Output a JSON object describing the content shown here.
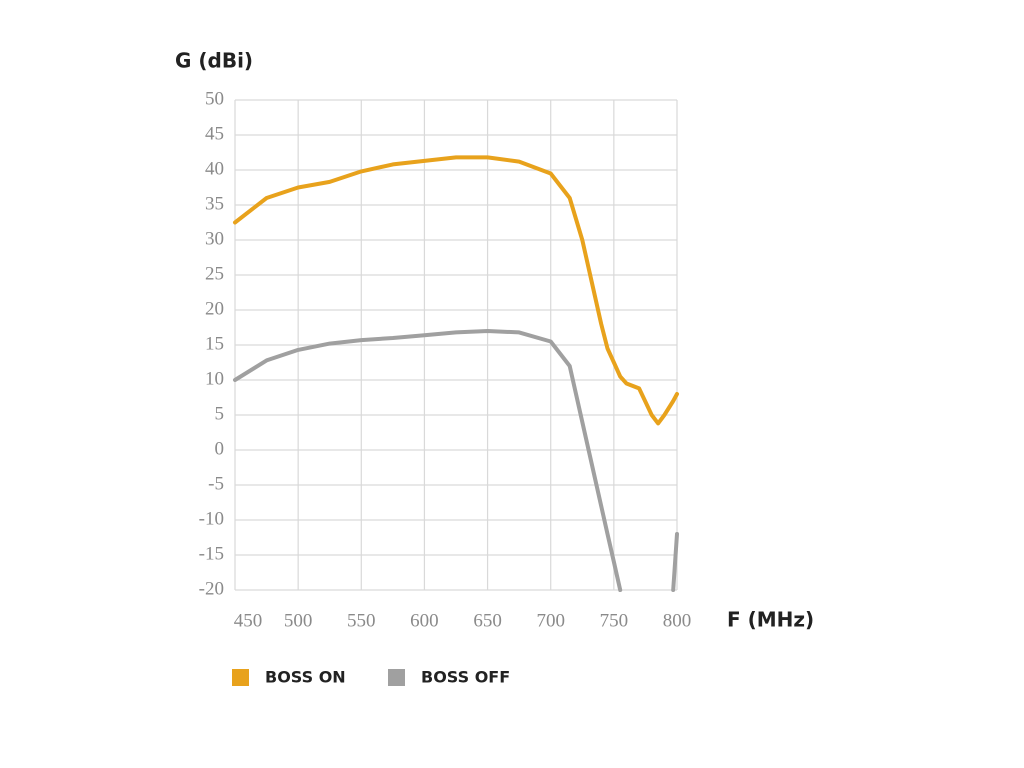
{
  "chart_data": {
    "type": "line",
    "y_label": "G (dBi)",
    "x_label": "F (MHz)",
    "xlim": [
      450,
      800
    ],
    "xticks": [
      450,
      500,
      550,
      600,
      650,
      700,
      750,
      800
    ],
    "ylim": [
      -20,
      50
    ],
    "yticks": [
      -20,
      -15,
      -10,
      -5,
      0,
      5,
      10,
      15,
      20,
      25,
      30,
      35,
      40,
      45,
      50
    ],
    "grid": true,
    "x": [
      450,
      475,
      500,
      525,
      550,
      575,
      600,
      625,
      650,
      675,
      700,
      715,
      725,
      730,
      740,
      745,
      750,
      755,
      760,
      770,
      780,
      785,
      790,
      797,
      800
    ],
    "series": [
      {
        "name": "BOSS ON",
        "color": "#e8a21c",
        "values": [
          32.5,
          36,
          37.5,
          38.3,
          39.8,
          40.8,
          41.3,
          41.8,
          41.8,
          41.2,
          39.5,
          36,
          30,
          26,
          18,
          14.5,
          12.5,
          10.5,
          9.5,
          8.8,
          5,
          3.8,
          5,
          7,
          8
        ]
      },
      {
        "name": "BOSS OFF",
        "color": "#a0a0a0",
        "values": [
          10,
          12.8,
          14.3,
          15.2,
          15.7,
          16,
          16.4,
          16.8,
          17,
          16.8,
          15.5,
          12,
          4,
          0,
          -8,
          -12,
          -16,
          -20,
          null,
          null,
          null,
          null,
          null,
          -20,
          -12
        ]
      }
    ]
  }
}
